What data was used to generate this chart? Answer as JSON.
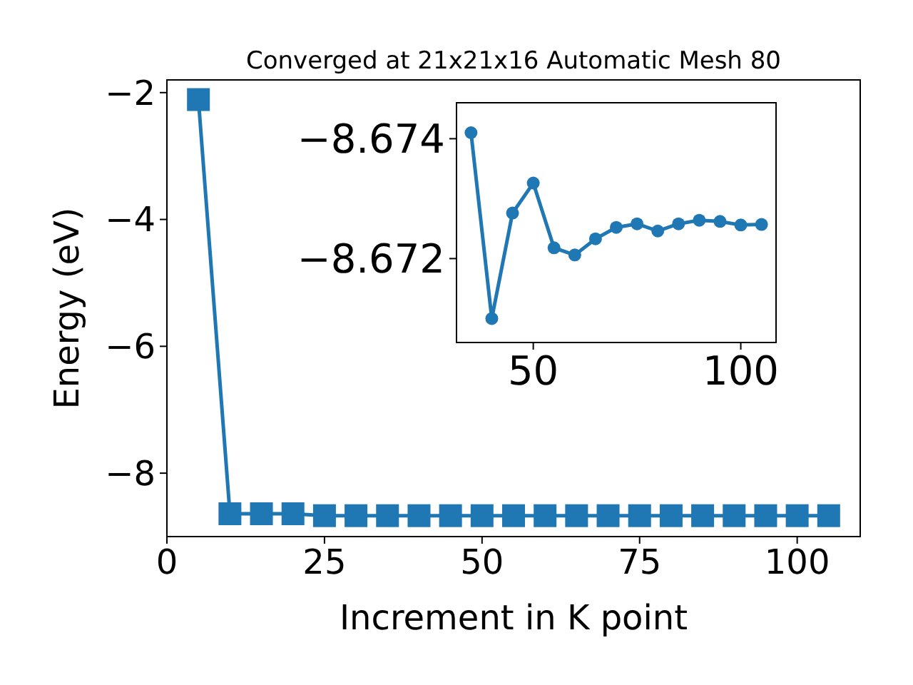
{
  "chart_data": [
    {
      "type": "line",
      "title": "Converged at 21x21x16 Automatic Mesh 80",
      "xlabel": "Increment in K point",
      "ylabel": "Energy (eV)",
      "marker": "square",
      "xlim": [
        0,
        110
      ],
      "ylim": [
        -9.0,
        -1.8
      ],
      "xticks": [
        0,
        25,
        50,
        75,
        100
      ],
      "yticks": [
        -8,
        -6,
        -4,
        -2
      ],
      "series": [
        {
          "color": "#1f77b4",
          "x": [
            5,
            10,
            15,
            20,
            25,
            30,
            35,
            40,
            45,
            50,
            55,
            60,
            65,
            70,
            75,
            80,
            85,
            90,
            95,
            100,
            105
          ],
          "values": [
            -2.11,
            -8.64,
            -8.64,
            -8.64,
            -8.67,
            -8.67,
            -8.67,
            -8.67,
            -8.67,
            -8.67,
            -8.67,
            -8.67,
            -8.67,
            -8.67,
            -8.67,
            -8.67,
            -8.67,
            -8.67,
            -8.67,
            -8.67,
            -8.67
          ]
        }
      ]
    },
    {
      "type": "line",
      "marker": "circle",
      "xlim": [
        31.5,
        108.5
      ],
      "ylim": [
        -8.6706,
        -8.6746
      ],
      "xticks": [
        50,
        100
      ],
      "yticks": [
        -8.674,
        -8.672
      ],
      "series": [
        {
          "color": "#1f77b4",
          "x": [
            35,
            40,
            45,
            50,
            55,
            60,
            65,
            70,
            75,
            80,
            85,
            90,
            95,
            100,
            105
          ],
          "values": [
            -8.6741,
            -8.671,
            -8.67276,
            -8.67326,
            -8.67218,
            -8.67206,
            -8.67233,
            -8.67252,
            -8.67258,
            -8.67246,
            -8.67258,
            -8.67264,
            -8.67262,
            -8.67256,
            -8.67257
          ]
        }
      ]
    }
  ]
}
